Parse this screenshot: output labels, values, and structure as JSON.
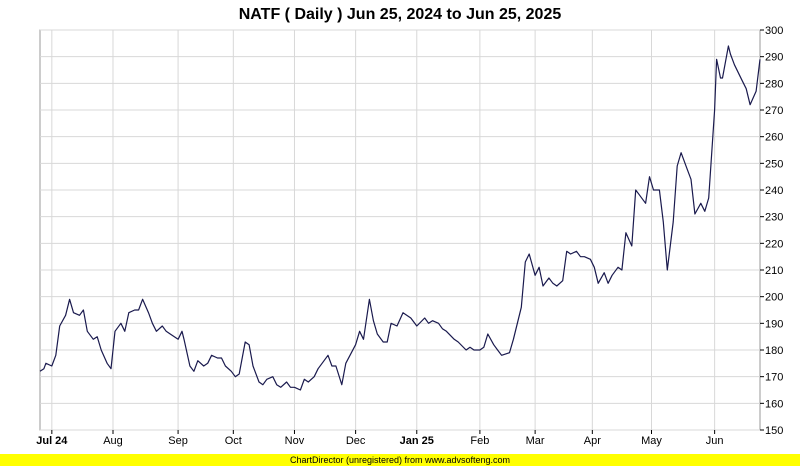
{
  "footer": {
    "text": "ChartDirector (unregistered) from www.advsofteng.com"
  },
  "colors": {
    "line": "#1a1a4e",
    "grid": "#d8d8d8",
    "footer_bg": "#ffff00"
  },
  "chart_data": {
    "type": "line",
    "title": "NATF ( Daily ) Jun 25, 2024 to Jun 25, 2025",
    "xlabel": "",
    "ylabel": "",
    "ylim": [
      150,
      300
    ],
    "y_ticks": [
      150,
      160,
      170,
      180,
      190,
      200,
      210,
      220,
      230,
      240,
      250,
      260,
      270,
      280,
      290,
      300
    ],
    "y_axis_side": "right",
    "grid": true,
    "x_range": [
      "2024-06-25",
      "2025-06-25"
    ],
    "x_ticks": [
      {
        "label": "Jul 24",
        "date": "2024-07-01",
        "bold": true
      },
      {
        "label": "Aug",
        "date": "2024-08-01",
        "bold": false
      },
      {
        "label": "Sep",
        "date": "2024-09-03",
        "bold": false
      },
      {
        "label": "Oct",
        "date": "2024-10-01",
        "bold": false
      },
      {
        "label": "Nov",
        "date": "2024-11-01",
        "bold": false
      },
      {
        "label": "Dec",
        "date": "2024-12-02",
        "bold": false
      },
      {
        "label": "Jan 25",
        "date": "2025-01-02",
        "bold": true
      },
      {
        "label": "Feb",
        "date": "2025-02-03",
        "bold": false
      },
      {
        "label": "Mar",
        "date": "2025-03-03",
        "bold": false
      },
      {
        "label": "Apr",
        "date": "2025-04-01",
        "bold": false
      },
      {
        "label": "May",
        "date": "2025-05-01",
        "bold": false
      },
      {
        "label": "Jun",
        "date": "2025-06-02",
        "bold": false
      }
    ],
    "series": [
      {
        "values": [
          [
            "2024-06-25",
            172
          ],
          [
            "2024-06-27",
            173
          ],
          [
            "2024-06-28",
            175
          ],
          [
            "2024-07-01",
            174
          ],
          [
            "2024-07-03",
            178
          ],
          [
            "2024-07-05",
            189
          ],
          [
            "2024-07-08",
            193
          ],
          [
            "2024-07-10",
            199
          ],
          [
            "2024-07-12",
            194
          ],
          [
            "2024-07-15",
            193
          ],
          [
            "2024-07-17",
            195
          ],
          [
            "2024-07-19",
            187
          ],
          [
            "2024-07-22",
            184
          ],
          [
            "2024-07-24",
            185
          ],
          [
            "2024-07-26",
            180
          ],
          [
            "2024-07-29",
            175
          ],
          [
            "2024-07-31",
            173
          ],
          [
            "2024-08-02",
            187
          ],
          [
            "2024-08-05",
            190
          ],
          [
            "2024-08-07",
            187
          ],
          [
            "2024-08-09",
            194
          ],
          [
            "2024-08-12",
            195
          ],
          [
            "2024-08-14",
            195
          ],
          [
            "2024-08-16",
            199
          ],
          [
            "2024-08-19",
            194
          ],
          [
            "2024-08-21",
            190
          ],
          [
            "2024-08-23",
            187
          ],
          [
            "2024-08-26",
            189
          ],
          [
            "2024-08-28",
            187
          ],
          [
            "2024-08-30",
            186
          ],
          [
            "2024-09-03",
            184
          ],
          [
            "2024-09-05",
            187
          ],
          [
            "2024-09-06",
            184
          ],
          [
            "2024-09-09",
            174
          ],
          [
            "2024-09-11",
            172
          ],
          [
            "2024-09-13",
            176
          ],
          [
            "2024-09-16",
            174
          ],
          [
            "2024-09-18",
            175
          ],
          [
            "2024-09-20",
            178
          ],
          [
            "2024-09-23",
            177
          ],
          [
            "2024-09-25",
            177
          ],
          [
            "2024-09-27",
            174
          ],
          [
            "2024-09-30",
            172
          ],
          [
            "2024-10-02",
            170
          ],
          [
            "2024-10-04",
            171
          ],
          [
            "2024-10-07",
            183
          ],
          [
            "2024-10-09",
            182
          ],
          [
            "2024-10-11",
            174
          ],
          [
            "2024-10-14",
            168
          ],
          [
            "2024-10-16",
            167
          ],
          [
            "2024-10-18",
            169
          ],
          [
            "2024-10-21",
            170
          ],
          [
            "2024-10-23",
            167
          ],
          [
            "2024-10-25",
            166
          ],
          [
            "2024-10-28",
            168
          ],
          [
            "2024-10-30",
            166
          ],
          [
            "2024-11-01",
            166
          ],
          [
            "2024-11-04",
            165
          ],
          [
            "2024-11-06",
            169
          ],
          [
            "2024-11-08",
            168
          ],
          [
            "2024-11-11",
            170
          ],
          [
            "2024-11-13",
            173
          ],
          [
            "2024-11-15",
            175
          ],
          [
            "2024-11-18",
            178
          ],
          [
            "2024-11-20",
            174
          ],
          [
            "2024-11-22",
            174
          ],
          [
            "2024-11-25",
            167
          ],
          [
            "2024-11-27",
            175
          ],
          [
            "2024-12-02",
            182
          ],
          [
            "2024-12-04",
            187
          ],
          [
            "2024-12-06",
            184
          ],
          [
            "2024-12-09",
            199
          ],
          [
            "2024-12-11",
            191
          ],
          [
            "2024-12-13",
            186
          ],
          [
            "2024-12-16",
            183
          ],
          [
            "2024-12-18",
            183
          ],
          [
            "2024-12-20",
            190
          ],
          [
            "2024-12-23",
            189
          ],
          [
            "2024-12-26",
            194
          ],
          [
            "2024-12-30",
            192
          ],
          [
            "2025-01-02",
            189
          ],
          [
            "2025-01-06",
            192
          ],
          [
            "2025-01-08",
            190
          ],
          [
            "2025-01-10",
            191
          ],
          [
            "2025-01-13",
            190
          ],
          [
            "2025-01-15",
            188
          ],
          [
            "2025-01-17",
            187
          ],
          [
            "2025-01-21",
            184
          ],
          [
            "2025-01-23",
            183
          ],
          [
            "2025-01-27",
            180
          ],
          [
            "2025-01-29",
            181
          ],
          [
            "2025-01-31",
            180
          ],
          [
            "2025-02-03",
            180
          ],
          [
            "2025-02-05",
            181
          ],
          [
            "2025-02-07",
            186
          ],
          [
            "2025-02-10",
            182
          ],
          [
            "2025-02-12",
            180
          ],
          [
            "2025-02-14",
            178
          ],
          [
            "2025-02-18",
            179
          ],
          [
            "2025-02-20",
            184
          ],
          [
            "2025-02-24",
            196
          ],
          [
            "2025-02-26",
            213
          ],
          [
            "2025-02-28",
            216
          ],
          [
            "2025-03-03",
            208
          ],
          [
            "2025-03-05",
            211
          ],
          [
            "2025-03-07",
            204
          ],
          [
            "2025-03-10",
            207
          ],
          [
            "2025-03-12",
            205
          ],
          [
            "2025-03-14",
            204
          ],
          [
            "2025-03-17",
            206
          ],
          [
            "2025-03-19",
            217
          ],
          [
            "2025-03-21",
            216
          ],
          [
            "2025-03-24",
            217
          ],
          [
            "2025-03-26",
            215
          ],
          [
            "2025-03-28",
            215
          ],
          [
            "2025-03-31",
            214
          ],
          [
            "2025-04-02",
            211
          ],
          [
            "2025-04-04",
            205
          ],
          [
            "2025-04-07",
            209
          ],
          [
            "2025-04-09",
            205
          ],
          [
            "2025-04-11",
            208
          ],
          [
            "2025-04-14",
            211
          ],
          [
            "2025-04-16",
            210
          ],
          [
            "2025-04-18",
            224
          ],
          [
            "2025-04-21",
            219
          ],
          [
            "2025-04-23",
            240
          ],
          [
            "2025-04-25",
            238
          ],
          [
            "2025-04-28",
            235
          ],
          [
            "2025-04-30",
            245
          ],
          [
            "2025-05-02",
            240
          ],
          [
            "2025-05-05",
            240
          ],
          [
            "2025-05-07",
            228
          ],
          [
            "2025-05-09",
            210
          ],
          [
            "2025-05-12",
            228
          ],
          [
            "2025-05-14",
            249
          ],
          [
            "2025-05-16",
            254
          ],
          [
            "2025-05-19",
            248
          ],
          [
            "2025-05-21",
            244
          ],
          [
            "2025-05-23",
            231
          ],
          [
            "2025-05-26",
            235
          ],
          [
            "2025-05-28",
            232
          ],
          [
            "2025-05-30",
            237
          ],
          [
            "2025-06-02",
            270
          ],
          [
            "2025-06-03",
            289
          ],
          [
            "2025-06-05",
            282
          ],
          [
            "2025-06-06",
            282
          ],
          [
            "2025-06-09",
            294
          ],
          [
            "2025-06-10",
            291
          ],
          [
            "2025-06-12",
            287
          ],
          [
            "2025-06-16",
            281
          ],
          [
            "2025-06-18",
            278
          ],
          [
            "2025-06-20",
            272
          ],
          [
            "2025-06-23",
            277
          ],
          [
            "2025-06-25",
            289
          ]
        ]
      }
    ]
  }
}
